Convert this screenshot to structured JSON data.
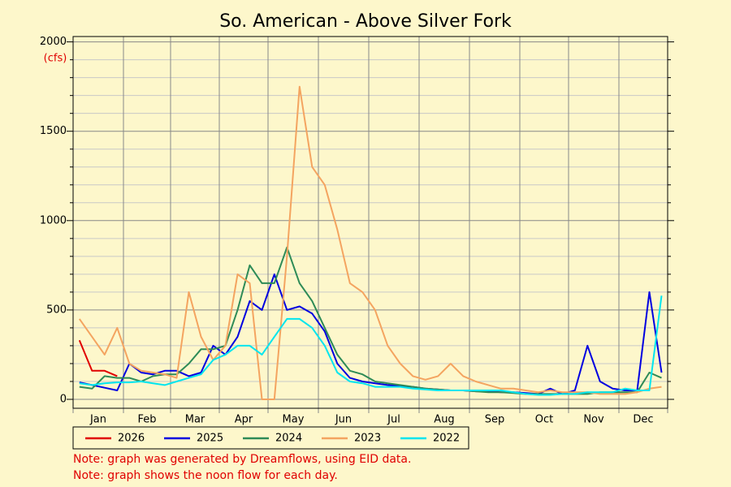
{
  "chart_data": {
    "type": "line",
    "title": "So. American - Above Silver Fork",
    "y_unit": "(cfs)",
    "categories": [
      "Jan",
      "Feb",
      "Mar",
      "Apr",
      "May",
      "Jun",
      "Jul",
      "Aug",
      "Sep",
      "Oct",
      "Nov",
      "Dec"
    ],
    "ylim": [
      -50,
      2030
    ],
    "yticks": [
      0,
      500,
      1000,
      1500,
      2000
    ],
    "minor_yticks": [
      100,
      200,
      300,
      400,
      600,
      700,
      800,
      900,
      1100,
      1200,
      1300,
      1400,
      1600,
      1700,
      1800,
      1900
    ],
    "grid": true,
    "series": [
      {
        "name": "2026",
        "color": "#e00000",
        "values": [
          [
            330,
            160,
            160,
            130
          ],
          [
            null,
            null,
            null,
            null
          ],
          [
            null,
            null,
            null,
            null
          ],
          [
            null,
            null,
            null,
            null
          ],
          [
            null,
            null,
            null,
            null
          ],
          [
            null,
            null,
            null,
            null
          ],
          [
            null,
            null,
            null,
            null
          ],
          [
            null,
            null,
            null,
            null
          ],
          [
            null,
            null,
            null,
            null
          ],
          [
            null,
            null,
            null,
            null
          ],
          [
            null,
            null,
            null,
            null
          ],
          [
            null,
            null,
            null,
            null
          ]
        ]
      },
      {
        "name": "2025",
        "color": "#0000e0",
        "values": [
          [
            95,
            80,
            65,
            50
          ],
          [
            200,
            150,
            140,
            160
          ],
          [
            160,
            130,
            150,
            300
          ],
          [
            250,
            350,
            550,
            500
          ],
          [
            700,
            500,
            520,
            480
          ],
          [
            380,
            200,
            120,
            100
          ],
          [
            90,
            80,
            75,
            70
          ],
          [
            60,
            55,
            50,
            50
          ],
          [
            45,
            45,
            40,
            40
          ],
          [
            35,
            30,
            60,
            30
          ],
          [
            50,
            300,
            100,
            60
          ],
          [
            50,
            50,
            600,
            150
          ]
        ]
      },
      {
        "name": "2024",
        "color": "#2e8b57",
        "values": [
          [
            70,
            60,
            130,
            120
          ],
          [
            120,
            100,
            130,
            140
          ],
          [
            140,
            200,
            280,
            280
          ],
          [
            300,
            500,
            750,
            650
          ],
          [
            650,
            850,
            650,
            550
          ],
          [
            400,
            250,
            160,
            140
          ],
          [
            100,
            90,
            80,
            70
          ],
          [
            60,
            55,
            50,
            50
          ],
          [
            45,
            40,
            40,
            35
          ],
          [
            30,
            30,
            30,
            30
          ],
          [
            30,
            30,
            40,
            40
          ],
          [
            40,
            40,
            150,
            120
          ]
        ]
      },
      {
        "name": "2023",
        "color": "#f4a460",
        "values": [
          [
            450,
            350,
            250,
            400
          ],
          [
            200,
            160,
            150,
            140
          ],
          [
            120,
            600,
            350,
            220
          ],
          [
            300,
            700,
            650,
            0
          ],
          [
            0,
            800,
            1750,
            1300
          ],
          [
            1200,
            950,
            650,
            600
          ],
          [
            500,
            300,
            200,
            130
          ],
          [
            110,
            130,
            200,
            130
          ],
          [
            100,
            80,
            60,
            60
          ],
          [
            50,
            40,
            50,
            40
          ],
          [
            40,
            40,
            30,
            30
          ],
          [
            30,
            40,
            60,
            70
          ]
        ]
      },
      {
        "name": "2022",
        "color": "#00e5ee",
        "values": [
          [
            90,
            80,
            90,
            95
          ],
          [
            95,
            100,
            90,
            80
          ],
          [
            100,
            120,
            140,
            220
          ],
          [
            250,
            300,
            300,
            250
          ],
          [
            350,
            450,
            450,
            400
          ],
          [
            300,
            150,
            100,
            90
          ],
          [
            70,
            70,
            70,
            60
          ],
          [
            55,
            50,
            50,
            50
          ],
          [
            50,
            50,
            50,
            40
          ],
          [
            30,
            25,
            25,
            30
          ],
          [
            30,
            40,
            40,
            40
          ],
          [
            60,
            50,
            50,
            580
          ]
        ]
      }
    ],
    "notes": [
      "Note: graph was generated by Dreamflows, using EID data.",
      "Note: graph shows the noon flow for each day."
    ]
  }
}
